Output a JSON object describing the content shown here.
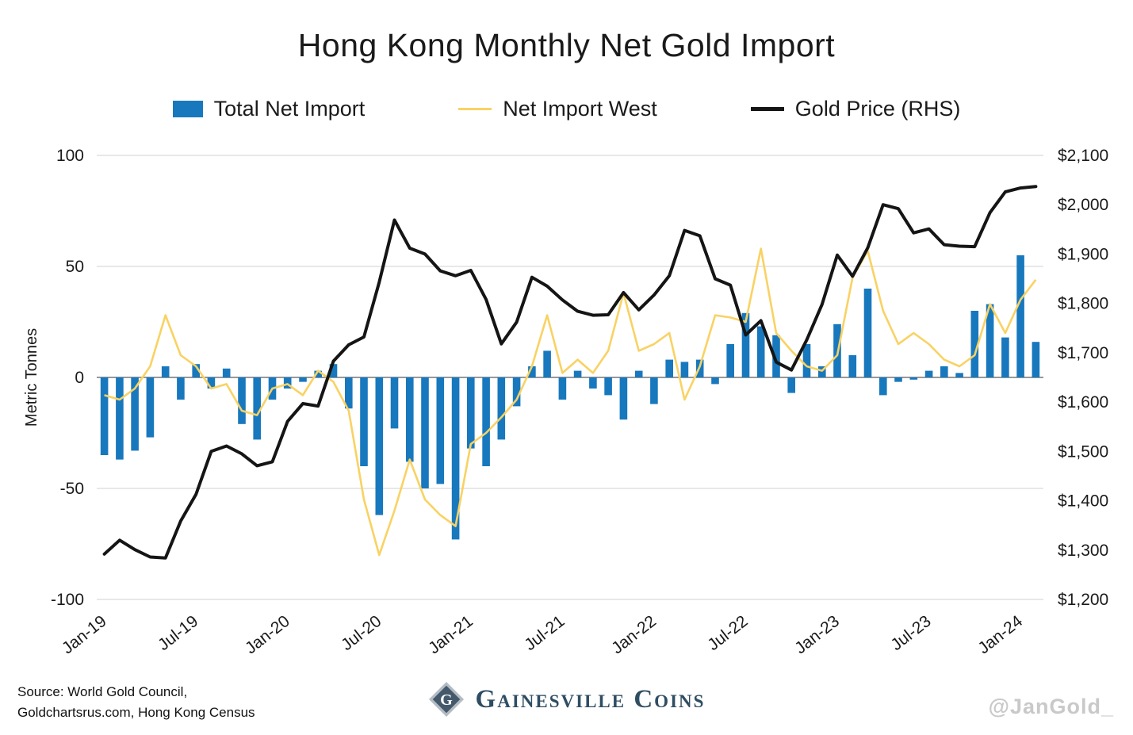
{
  "title": "Hong Kong Monthly Net Gold Import",
  "legend": [
    {
      "label": "Total Net Import",
      "type": "bar",
      "color": "#1878be"
    },
    {
      "label": "Net Import West",
      "type": "line",
      "color": "#f9d263"
    },
    {
      "label": "Gold Price (RHS)",
      "type": "line",
      "color": "#151515"
    }
  ],
  "footer": {
    "source_line1": "Source: World Gold Council,",
    "source_line2": "Goldchartsrus.com, Hong Kong Census",
    "brand": "Gainesville Coins",
    "watermark": "@JanGold_"
  },
  "chart_data": {
    "type": "bar",
    "title": "Hong Kong Monthly Net Gold Import",
    "ylabel_left": "Metric Tonnes",
    "grid": true,
    "legend_position": "top",
    "left_axis": {
      "min": -100,
      "max": 100,
      "ticks": [
        100,
        50,
        0,
        -50,
        -100
      ],
      "labels": [
        "100",
        "50",
        "0",
        "-50",
        "-100"
      ]
    },
    "right_axis": {
      "min": 1200,
      "max": 2100,
      "ticks": [
        2100,
        2000,
        1900,
        1800,
        1700,
        1600,
        1500,
        1400,
        1300,
        1200
      ],
      "labels": [
        "$2,100",
        "$2,000",
        "$1,900",
        "$1,800",
        "$1,700",
        "$1,600",
        "$1,500",
        "$1,400",
        "$1,300",
        "$1,200"
      ]
    },
    "x_ticks": [
      {
        "index": 0,
        "label": "Jan-19"
      },
      {
        "index": 6,
        "label": "Jul-19"
      },
      {
        "index": 12,
        "label": "Jan-20"
      },
      {
        "index": 18,
        "label": "Jul-20"
      },
      {
        "index": 24,
        "label": "Jan-21"
      },
      {
        "index": 30,
        "label": "Jul-21"
      },
      {
        "index": 36,
        "label": "Jan-22"
      },
      {
        "index": 42,
        "label": "Jul-22"
      },
      {
        "index": 48,
        "label": "Jan-23"
      },
      {
        "index": 54,
        "label": "Jul-23"
      },
      {
        "index": 60,
        "label": "Jan-24"
      }
    ],
    "months": [
      "Jan-19",
      "Feb-19",
      "Mar-19",
      "Apr-19",
      "May-19",
      "Jun-19",
      "Jul-19",
      "Aug-19",
      "Sep-19",
      "Oct-19",
      "Nov-19",
      "Dec-19",
      "Jan-20",
      "Feb-20",
      "Mar-20",
      "Apr-20",
      "May-20",
      "Jun-20",
      "Jul-20",
      "Aug-20",
      "Sep-20",
      "Oct-20",
      "Nov-20",
      "Dec-20",
      "Jan-21",
      "Feb-21",
      "Mar-21",
      "Apr-21",
      "May-21",
      "Jun-21",
      "Jul-21",
      "Aug-21",
      "Sep-21",
      "Oct-21",
      "Nov-21",
      "Dec-21",
      "Jan-22",
      "Feb-22",
      "Mar-22",
      "Apr-22",
      "May-22",
      "Jun-22",
      "Jul-22",
      "Aug-22",
      "Sep-22",
      "Oct-22",
      "Nov-22",
      "Dec-22",
      "Jan-23",
      "Feb-23",
      "Mar-23",
      "Apr-23",
      "May-23",
      "Jun-23",
      "Jul-23",
      "Aug-23",
      "Sep-23",
      "Oct-23",
      "Nov-23",
      "Dec-23",
      "Jan-24",
      "Feb-24"
    ],
    "series": [
      {
        "name": "Total Net Import",
        "type": "bar",
        "axis": "left",
        "color": "#1878be",
        "unit": "metric tonnes",
        "values": [
          -35,
          -37,
          -33,
          -27,
          5,
          -10,
          6,
          -5,
          4,
          -21,
          -28,
          -10,
          -5,
          -2,
          3,
          6,
          -14,
          -40,
          -62,
          -23,
          -38,
          -50,
          -48,
          -73,
          -32,
          -40,
          -28,
          -13,
          5,
          12,
          -10,
          3,
          -5,
          -8,
          -19,
          3,
          -12,
          8,
          7,
          8,
          -3,
          15,
          29,
          23,
          19,
          -7,
          15,
          5,
          24,
          10,
          40,
          -8,
          -2,
          -1,
          3,
          5,
          2,
          30,
          33,
          18,
          55,
          16
        ]
      },
      {
        "name": "Net Import West",
        "type": "line",
        "axis": "left",
        "color": "#f9d263",
        "unit": "metric tonnes",
        "values": [
          -8,
          -10,
          -5,
          5,
          28,
          10,
          5,
          -5,
          -3,
          -15,
          -17,
          -5,
          -3,
          -8,
          3,
          -2,
          -15,
          -55,
          -80,
          -60,
          -37,
          -55,
          -62,
          -67,
          -30,
          -25,
          -18,
          -10,
          5,
          28,
          2,
          8,
          2,
          12,
          38,
          12,
          15,
          20,
          -10,
          5,
          28,
          27,
          25,
          58,
          20,
          12,
          5,
          3,
          10,
          45,
          57,
          30,
          15,
          20,
          15,
          8,
          5,
          10,
          33,
          20,
          35,
          44
        ]
      },
      {
        "name": "Gold Price (RHS)",
        "type": "line",
        "axis": "right",
        "color": "#151515",
        "unit": "USD/oz",
        "values": [
          1292,
          1320,
          1301,
          1286,
          1284,
          1359,
          1413,
          1500,
          1511,
          1495,
          1471,
          1479,
          1561,
          1597,
          1592,
          1683,
          1716,
          1732,
          1843,
          1969,
          1912,
          1900,
          1866,
          1856,
          1867,
          1808,
          1718,
          1762,
          1853,
          1835,
          1807,
          1784,
          1776,
          1777,
          1822,
          1787,
          1817,
          1856,
          1948,
          1937,
          1850,
          1837,
          1736,
          1765,
          1681,
          1665,
          1726,
          1798,
          1898,
          1855,
          1913,
          2000,
          1992,
          1943,
          1951,
          1919,
          1916,
          1915,
          1984,
          2026,
          2034,
          2037
        ]
      }
    ]
  }
}
